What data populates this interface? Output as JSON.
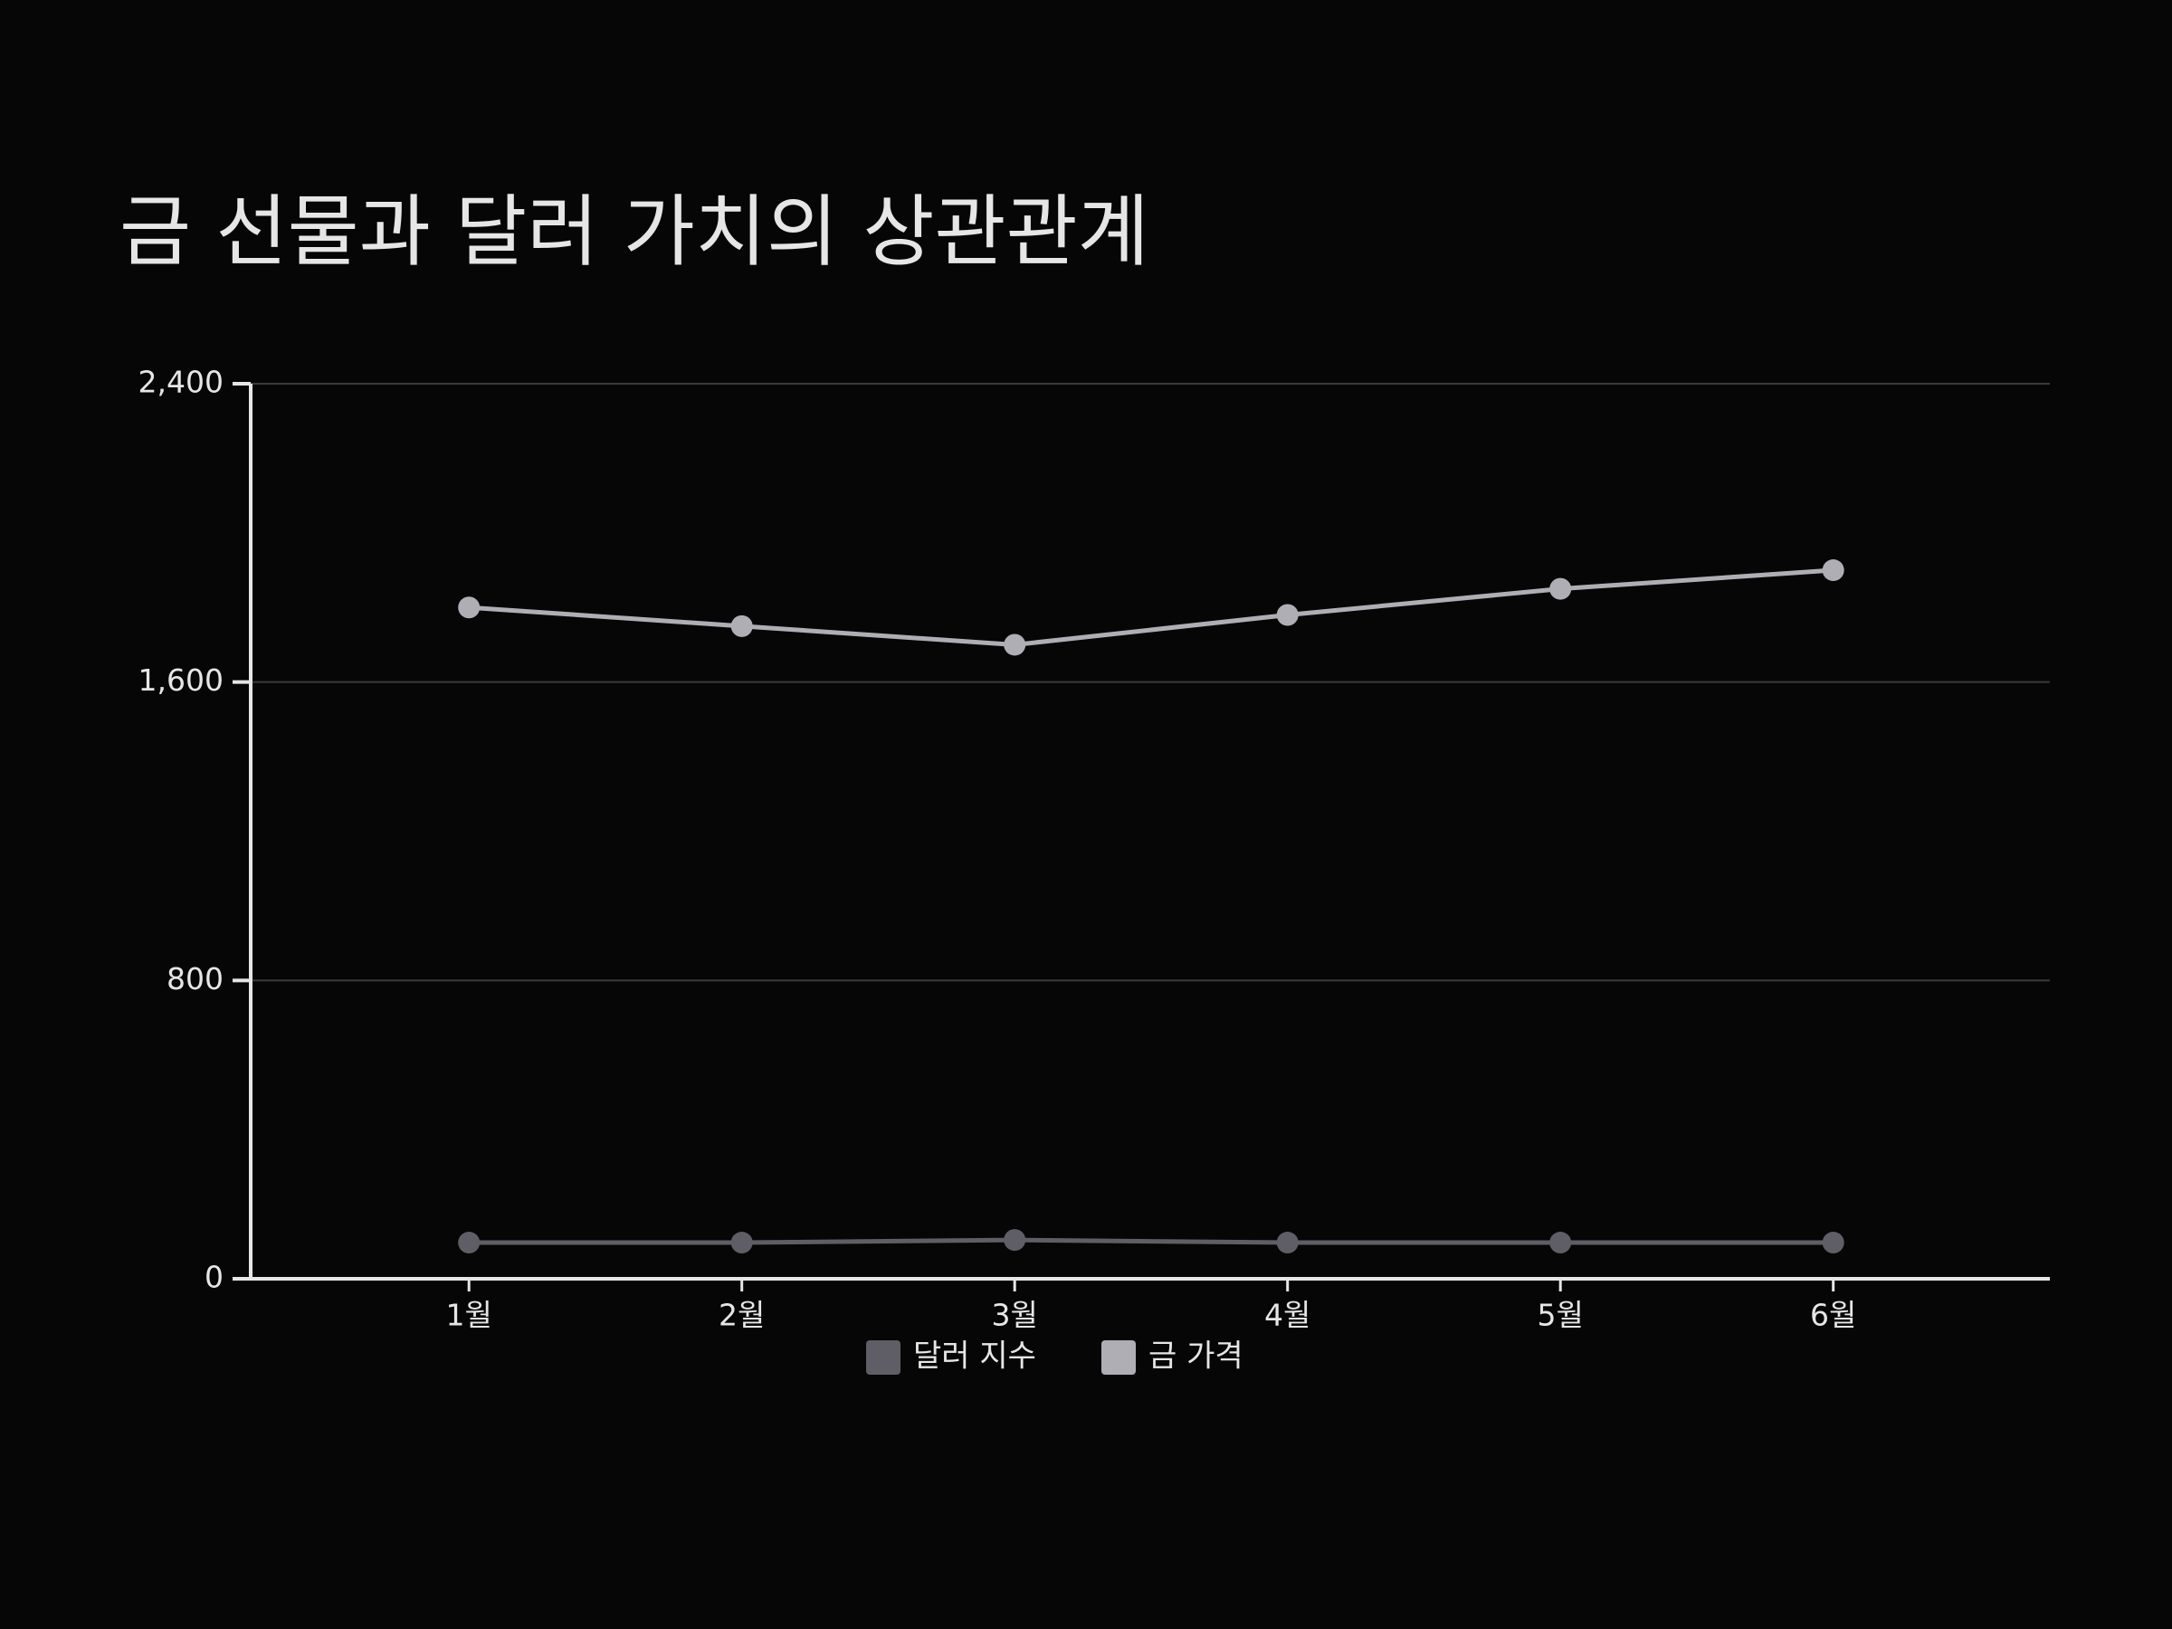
{
  "chart_data": {
    "type": "line",
    "title": "금 선물과 달러 가치의 상관관계",
    "categories": [
      "1월",
      "2월",
      "3월",
      "4월",
      "5월",
      "6월"
    ],
    "series": [
      {
        "name": "달러 지수",
        "color": "#5f5e66",
        "values": [
          97,
          97,
          104,
          97,
          97,
          97
        ]
      },
      {
        "name": "금 가격",
        "color": "#b0aeb5",
        "values": [
          1800,
          1750,
          1700,
          1780,
          1850,
          1900
        ]
      }
    ],
    "ylim": [
      0,
      2400
    ],
    "yticks": [
      0,
      800,
      {
        "value": 1600,
        "label": "1,600"
      },
      {
        "value": 2400,
        "label": "2,400"
      }
    ],
    "grid": true,
    "legend": "bottom"
  }
}
